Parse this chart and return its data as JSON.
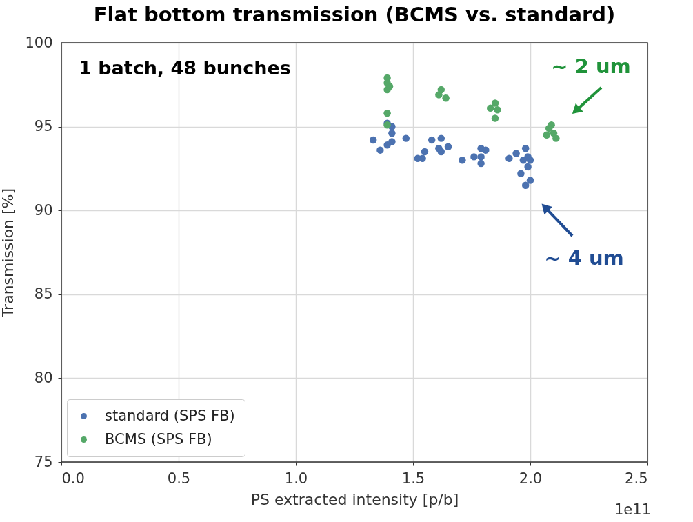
{
  "chart_data": {
    "type": "scatter",
    "title": "Flat bottom transmission (BCMS vs. standard)",
    "xlabel": "PS extracted intensity [p/b]",
    "ylabel": "Transmission [%]",
    "xlim": [
      0.0,
      2.5
    ],
    "xticks": [
      {
        "value": 0,
        "label": "0.0"
      },
      0.5,
      {
        "value": 1,
        "label": "1.0"
      },
      1.5,
      {
        "value": 2,
        "label": "2.0"
      },
      2.5
    ],
    "ylim": [
      75,
      100
    ],
    "yticks": [
      75,
      80,
      85,
      90,
      95,
      100
    ],
    "grid": true,
    "legend": "bottom left",
    "marker": "circle",
    "series": [
      {
        "name": "standard (SPS FB)",
        "color": "#4c72b0",
        "x": [
          1.33,
          1.36,
          1.39,
          1.41,
          1.41,
          1.41,
          1.39,
          1.47,
          1.52,
          1.55,
          1.54,
          1.58,
          1.62,
          1.61,
          1.62,
          1.65,
          1.71,
          1.76,
          1.79,
          1.81,
          1.79,
          1.79,
          1.91,
          1.94,
          1.98,
          1.99,
          2.0,
          1.99,
          1.96,
          1.98,
          2.0,
          1.97
        ],
        "values": [
          94.2,
          93.6,
          93.9,
          94.1,
          94.6,
          95.0,
          95.2,
          94.3,
          93.1,
          93.5,
          93.1,
          94.2,
          94.3,
          93.7,
          93.5,
          93.8,
          93.0,
          93.2,
          93.7,
          93.6,
          92.8,
          93.2,
          93.1,
          93.4,
          93.7,
          93.2,
          93.0,
          92.6,
          92.2,
          91.5,
          91.8,
          93.0
        ]
      },
      {
        "name": "BCMS (SPS FB)",
        "color": "#55a868",
        "x": [
          1.39,
          1.39,
          1.39,
          1.4,
          1.39,
          1.39,
          1.62,
          1.61,
          1.64,
          1.85,
          1.83,
          1.85,
          1.86,
          2.08,
          2.1,
          2.07,
          2.11,
          2.09
        ],
        "values": [
          97.9,
          97.6,
          97.2,
          97.4,
          95.8,
          95.1,
          97.2,
          96.9,
          96.7,
          96.4,
          96.1,
          95.5,
          96.0,
          94.9,
          94.6,
          94.5,
          94.3,
          95.1
        ]
      }
    ],
    "annotations": [
      "1 batch, 48 bunches",
      "1e11",
      "~ 2 um",
      "~ 4 um"
    ]
  }
}
